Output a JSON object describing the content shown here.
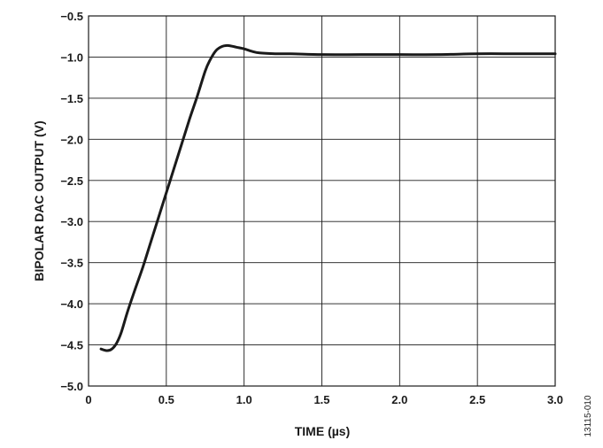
{
  "chart_data": {
    "type": "line",
    "title": "",
    "xlabel": "TIME (µs)",
    "ylabel": "BIPOLAR DAC OUTPUT (V)",
    "xlim": [
      0,
      3.0
    ],
    "ylim": [
      -5.0,
      -0.5
    ],
    "grid": true,
    "x_ticks": [
      "0",
      "0.5",
      "1.0",
      "1.5",
      "2.0",
      "2.5",
      "3.0"
    ],
    "x_tick_values": [
      0,
      0.5,
      1.0,
      1.5,
      2.0,
      2.5,
      3.0
    ],
    "y_ticks": [
      "−0.5",
      "−1.0",
      "−1.5",
      "−2.0",
      "−2.5",
      "−3.0",
      "−3.5",
      "−4.0",
      "−4.5",
      "−5.0"
    ],
    "y_tick_values": [
      -0.5,
      -1.0,
      -1.5,
      -2.0,
      -2.5,
      -3.0,
      -3.5,
      -4.0,
      -4.5,
      -5.0
    ],
    "series": [
      {
        "x": [
          0.08,
          0.12,
          0.15,
          0.18,
          0.21,
          0.25,
          0.3,
          0.35,
          0.4,
          0.45,
          0.5,
          0.55,
          0.6,
          0.65,
          0.7,
          0.75,
          0.78,
          0.82,
          0.86,
          0.9,
          0.95,
          1.0,
          1.05,
          1.1,
          1.2,
          1.3,
          1.5,
          1.75,
          2.0,
          2.25,
          2.5,
          2.75,
          3.0
        ],
        "y": [
          -4.55,
          -4.57,
          -4.55,
          -4.48,
          -4.35,
          -4.1,
          -3.82,
          -3.55,
          -3.25,
          -2.95,
          -2.65,
          -2.35,
          -2.05,
          -1.75,
          -1.47,
          -1.17,
          -1.04,
          -0.92,
          -0.87,
          -0.86,
          -0.88,
          -0.9,
          -0.93,
          -0.95,
          -0.96,
          -0.96,
          -0.97,
          -0.97,
          -0.97,
          -0.97,
          -0.96,
          -0.96,
          -0.96
        ]
      }
    ],
    "color": "#1a1a1a"
  },
  "figure_number": "13115-010"
}
